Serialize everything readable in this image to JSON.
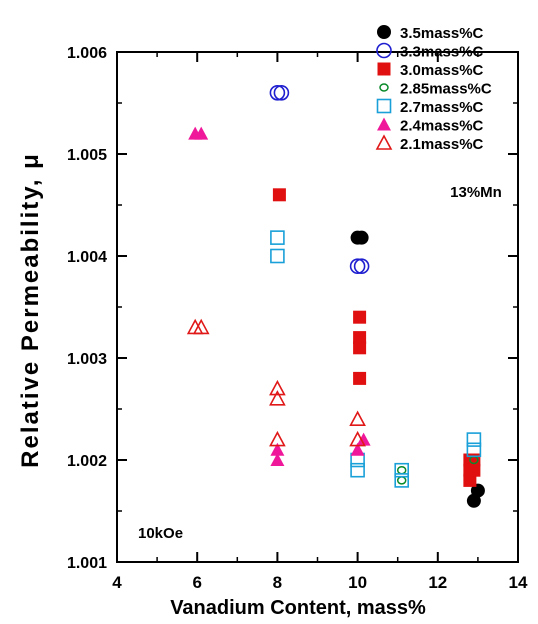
{
  "chart_data": {
    "type": "scatter",
    "xlabel": "Vanadium Content,  mass%",
    "ylabel": "Relative Permeability,  μ",
    "xlim": [
      4,
      14
    ],
    "ylim": [
      1.001,
      1.006
    ],
    "xticks": [
      "4",
      "6",
      "8",
      "10",
      "12",
      "14"
    ],
    "yticks": [
      "1.001",
      "1.002",
      "1.003",
      "1.004",
      "1.005",
      "1.006"
    ],
    "annotations": {
      "condition": "13%Mn",
      "field": "10kOe"
    },
    "legend_position": "top-right",
    "series": [
      {
        "name": "3.5mass%C",
        "marker": "circle",
        "filled": true,
        "color": "#000000",
        "x": [
          10.0,
          10.1,
          12.9,
          13.0
        ],
        "y": [
          1.00418,
          1.00418,
          1.0016,
          1.0017
        ]
      },
      {
        "name": "3.3mass%C",
        "marker": "circle",
        "filled": false,
        "color": "#1f1fd0",
        "x": [
          8.0,
          8.1,
          10.0,
          10.1
        ],
        "y": [
          1.0056,
          1.0056,
          1.0039,
          1.0039
        ]
      },
      {
        "name": "3.0mass%C",
        "marker": "square",
        "filled": true,
        "color": "#e01010",
        "x": [
          8.05,
          10.05,
          10.05,
          10.05,
          10.05,
          12.8,
          12.9,
          12.8,
          12.9,
          12.8
        ],
        "y": [
          1.0046,
          1.0034,
          1.0032,
          1.0031,
          1.0028,
          1.002,
          1.002,
          1.0019,
          1.0019,
          1.0018
        ]
      },
      {
        "name": "2.85mass%C",
        "marker": "circle-small",
        "filled": false,
        "color": "#0a8a2a",
        "x": [
          11.1,
          11.1,
          12.9
        ],
        "y": [
          1.0019,
          1.0018,
          1.002
        ]
      },
      {
        "name": "2.7mass%C",
        "marker": "square",
        "filled": false,
        "color": "#1aa0d8",
        "x": [
          8.0,
          8.0,
          10.0,
          10.0,
          11.1,
          11.1,
          12.9,
          12.9
        ],
        "y": [
          1.00418,
          1.004,
          1.002,
          1.0019,
          1.0019,
          1.0018,
          1.0022,
          1.0021
        ]
      },
      {
        "name": "2.4mass%C",
        "marker": "triangle",
        "filled": true,
        "color": "#f0189a",
        "x": [
          5.95,
          6.1,
          8.0,
          8.0,
          10.0,
          10.15
        ],
        "y": [
          1.0052,
          1.0052,
          1.0021,
          1.002,
          1.0021,
          1.0022
        ]
      },
      {
        "name": "2.1mass%C",
        "marker": "triangle",
        "filled": false,
        "color": "#e01818",
        "x": [
          5.95,
          6.1,
          8.0,
          8.0,
          8.0,
          10.0,
          10.0
        ],
        "y": [
          1.0033,
          1.0033,
          1.0027,
          1.0026,
          1.0022,
          1.0024,
          1.0022
        ]
      }
    ]
  }
}
